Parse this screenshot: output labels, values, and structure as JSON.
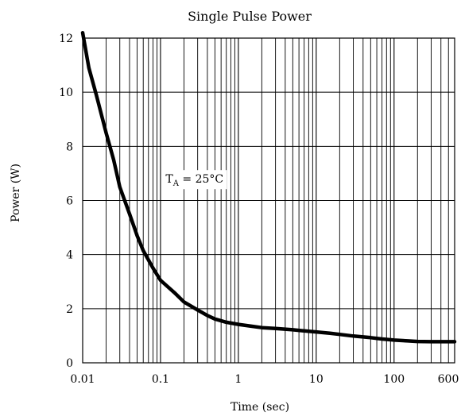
{
  "chart_data": {
    "type": "line",
    "title": "Single Pulse Power",
    "xlabel": "Time (sec)",
    "ylabel": "Power  (W)",
    "x_scale": "log",
    "xlim": [
      0.01,
      600
    ],
    "ylim": [
      0,
      12
    ],
    "x_tick_values": [
      0.01,
      0.1,
      1,
      10,
      100,
      600
    ],
    "x_tick_labels": [
      "0.01",
      "0.1",
      "1",
      "10",
      "100",
      "600"
    ],
    "y_tick_values": [
      0,
      2,
      4,
      6,
      8,
      10,
      12
    ],
    "y_tick_labels": [
      "0",
      "2",
      "4",
      "6",
      "8",
      "10",
      "12"
    ],
    "grid": true,
    "annotation": {
      "symbol": "T",
      "subscript": "A",
      "text": " = 25°C",
      "x": 0.5,
      "y": 6.8
    },
    "series": [
      {
        "x": [
          0.01,
          0.012,
          0.015,
          0.02,
          0.025,
          0.03,
          0.04,
          0.05,
          0.06,
          0.08,
          0.1,
          0.15,
          0.2,
          0.3,
          0.4,
          0.5,
          0.7,
          1,
          1.5,
          2,
          3,
          5,
          7,
          10,
          15,
          20,
          30,
          50,
          70,
          100,
          150,
          200,
          300,
          400,
          600
        ],
        "values": [
          12.2,
          10.9,
          9.9,
          8.5,
          7.5,
          6.5,
          5.5,
          4.7,
          4.15,
          3.5,
          3.05,
          2.6,
          2.25,
          1.95,
          1.75,
          1.62,
          1.5,
          1.42,
          1.35,
          1.3,
          1.27,
          1.22,
          1.18,
          1.14,
          1.09,
          1.05,
          0.99,
          0.93,
          0.88,
          0.84,
          0.81,
          0.79,
          0.78,
          0.78,
          0.78
        ]
      }
    ]
  }
}
